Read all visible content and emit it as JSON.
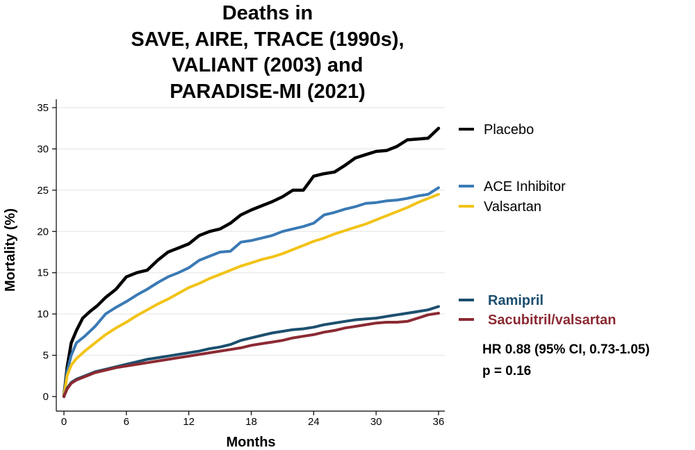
{
  "chart_data": {
    "type": "line",
    "title_lines": [
      "Deaths in",
      "SAVE, AIRE, TRACE (1990s),",
      "VALIANT (2003) and",
      "PARADISE-MI (2021)"
    ],
    "xlabel": "Months",
    "ylabel": "Mortality (%)",
    "xlim": [
      -1,
      37
    ],
    "ylim": [
      -0.5,
      36
    ],
    "xticks": [
      0,
      6,
      12,
      18,
      24,
      30,
      36
    ],
    "yticks": [
      0,
      5,
      10,
      15,
      20,
      25,
      30,
      35
    ],
    "grid": "horizontal",
    "legend_position": "right",
    "series": [
      {
        "name": "Placebo",
        "color": "#000000",
        "x": [
          0,
          0.3,
          0.7,
          1.2,
          1.8,
          2.5,
          3.2,
          4,
          5,
          6,
          7,
          8,
          9,
          10,
          11,
          12,
          13,
          14,
          15,
          16,
          17,
          18,
          19,
          20,
          21,
          22,
          23,
          24,
          25,
          26,
          27,
          28,
          29,
          30,
          31,
          32,
          33,
          34,
          35,
          36
        ],
        "y": [
          0,
          3.5,
          6.5,
          8,
          9.5,
          10.3,
          11,
          12,
          13,
          14.5,
          15,
          15.3,
          16.5,
          17.5,
          18,
          18.5,
          19.5,
          20,
          20.3,
          21,
          22,
          22.6,
          23.1,
          23.6,
          24.2,
          25,
          25,
          26.7,
          27,
          27.2,
          28,
          28.9,
          29.3,
          29.7,
          29.8,
          30.3,
          31.1,
          31.2,
          31.3,
          32.5
        ]
      },
      {
        "name": "ACE Inhibitor",
        "color": "#3a7ab5",
        "x": [
          0,
          0.3,
          0.7,
          1.2,
          2,
          3,
          4,
          5,
          6,
          7,
          8,
          9,
          10,
          11,
          12,
          13,
          14,
          15,
          16,
          17,
          18,
          19,
          20,
          21,
          22,
          23,
          24,
          25,
          26,
          27,
          28,
          29,
          30,
          31,
          32,
          33,
          34,
          35,
          36
        ],
        "y": [
          0,
          3,
          5,
          6.5,
          7.3,
          8.5,
          10,
          10.8,
          11.5,
          12.3,
          13,
          13.8,
          14.5,
          15,
          15.6,
          16.5,
          17,
          17.5,
          17.6,
          18.7,
          18.9,
          19.2,
          19.5,
          20,
          20.3,
          20.6,
          21,
          22,
          22.3,
          22.7,
          23,
          23.4,
          23.5,
          23.7,
          23.8,
          24,
          24.3,
          24.5,
          25.3
        ]
      },
      {
        "name": "Valsartan",
        "color": "#f2c318",
        "x": [
          0,
          0.3,
          0.7,
          1.2,
          2,
          3,
          4,
          5,
          6,
          7,
          8,
          9,
          10,
          11,
          12,
          13,
          14,
          15,
          16,
          17,
          18,
          19,
          20,
          21,
          22,
          23,
          24,
          25,
          26,
          27,
          28,
          29,
          30,
          31,
          32,
          33,
          34,
          35,
          36
        ],
        "y": [
          0,
          2.5,
          3.8,
          4.6,
          5.5,
          6.5,
          7.5,
          8.3,
          9,
          9.8,
          10.5,
          11.2,
          11.8,
          12.5,
          13.2,
          13.7,
          14.3,
          14.8,
          15.3,
          15.8,
          16.2,
          16.6,
          16.9,
          17.3,
          17.8,
          18.3,
          18.8,
          19.2,
          19.7,
          20.1,
          20.5,
          20.9,
          21.4,
          21.9,
          22.4,
          22.9,
          23.5,
          24,
          24.5
        ]
      },
      {
        "name": "Ramipril",
        "color": "#1c4f6e",
        "x": [
          0,
          0.3,
          0.7,
          1.2,
          2,
          3,
          4,
          5,
          6,
          7,
          8,
          9,
          10,
          11,
          12,
          13,
          14,
          15,
          16,
          17,
          18,
          19,
          20,
          21,
          22,
          23,
          24,
          25,
          26,
          27,
          28,
          29,
          30,
          31,
          32,
          33,
          34,
          35,
          36
        ],
        "y": [
          0,
          1,
          1.7,
          2.1,
          2.5,
          3,
          3.3,
          3.6,
          3.9,
          4.2,
          4.5,
          4.7,
          4.9,
          5.1,
          5.3,
          5.5,
          5.8,
          6,
          6.3,
          6.8,
          7.1,
          7.4,
          7.7,
          7.9,
          8.1,
          8.2,
          8.4,
          8.7,
          8.9,
          9.1,
          9.3,
          9.4,
          9.5,
          9.7,
          9.9,
          10.1,
          10.3,
          10.5,
          10.9
        ]
      },
      {
        "name": "Sacubitril/valsartan",
        "color": "#8b2a33",
        "x": [
          0,
          0.3,
          0.7,
          1.2,
          2,
          3,
          4,
          5,
          6,
          7,
          8,
          9,
          10,
          11,
          12,
          13,
          14,
          15,
          16,
          17,
          18,
          19,
          20,
          21,
          22,
          23,
          24,
          25,
          26,
          27,
          28,
          29,
          30,
          31,
          32,
          33,
          34,
          35,
          36
        ],
        "y": [
          0,
          0.9,
          1.6,
          2,
          2.4,
          2.9,
          3.2,
          3.5,
          3.7,
          3.9,
          4.1,
          4.3,
          4.5,
          4.7,
          4.9,
          5.1,
          5.3,
          5.5,
          5.7,
          5.9,
          6.2,
          6.4,
          6.6,
          6.8,
          7.1,
          7.3,
          7.5,
          7.8,
          8,
          8.3,
          8.5,
          8.7,
          8.9,
          9,
          9,
          9.1,
          9.5,
          9.9,
          10.1
        ]
      }
    ],
    "legend_entries": [
      {
        "name": "Placebo",
        "color": "#000000",
        "style": "normal"
      },
      {
        "name": "ACE Inhibitor",
        "color": "#3a7ab5",
        "style": "normal"
      },
      {
        "name": "Valsartan",
        "color": "#f2c318",
        "style": "normal"
      },
      {
        "name": "Ramipril",
        "color": "#1c4f6e",
        "style": "bold"
      },
      {
        "name": "Sacubitril/valsartan",
        "color": "#8b2a33",
        "style": "bold"
      }
    ],
    "annotation_lines": [
      "HR 0.88 (95% CI, 0.73-1.05)",
      "p = 0.16"
    ]
  }
}
